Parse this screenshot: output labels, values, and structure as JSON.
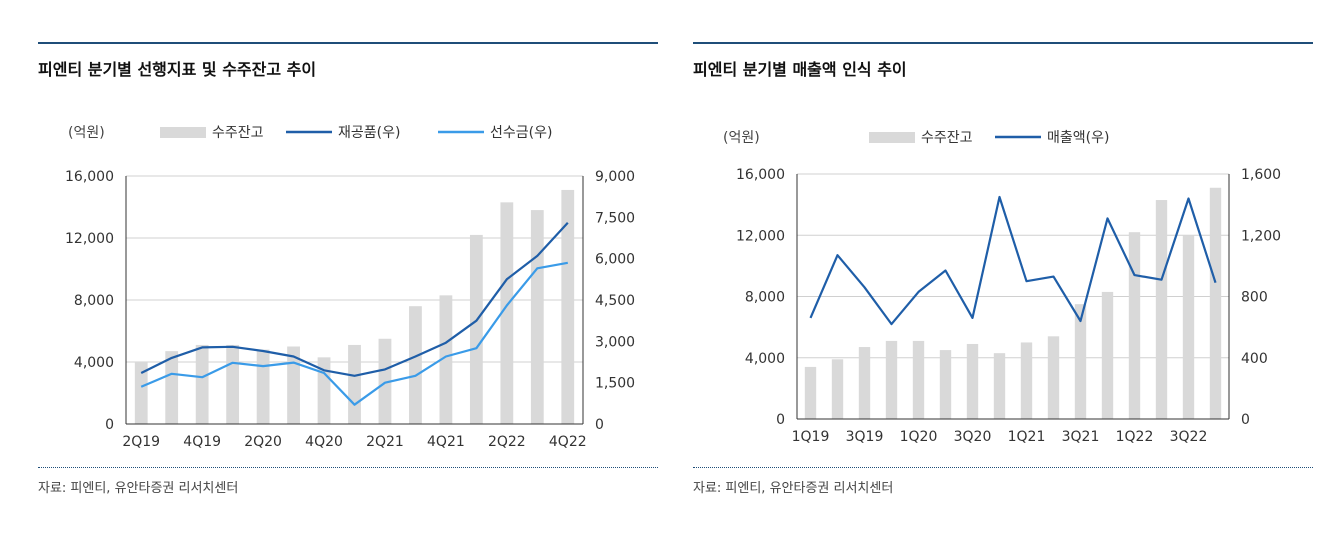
{
  "page": {
    "source_label": "자료: 피엔티, 유안타증권 리서치센터"
  },
  "colors": {
    "bar": "#d9d9d9",
    "dark_line": "#1f5ea8",
    "light_line": "#3a9be8",
    "rule": "#1f4e79",
    "axis": "#333333"
  },
  "chart_data": [
    {
      "type": "bar",
      "title": "피엔티 분기별 선행지표 및 수주잔고 추이",
      "unit_label": "(억원)",
      "categories": [
        "2Q19",
        "3Q19",
        "4Q19",
        "1Q20",
        "2Q20",
        "3Q20",
        "4Q20",
        "1Q21",
        "2Q21",
        "3Q21",
        "4Q21",
        "1Q22",
        "2Q22",
        "3Q22",
        "4Q22"
      ],
      "x_tick_labels": [
        "2Q19",
        "4Q19",
        "2Q20",
        "4Q20",
        "2Q21",
        "4Q21",
        "2Q22",
        "4Q22"
      ],
      "left_axis": {
        "min": 0,
        "max": 16000,
        "ticks": [
          "0",
          "4,000",
          "8,000",
          "12,000",
          "16,000"
        ]
      },
      "right_axis": {
        "min": 0,
        "max": 9000,
        "ticks": [
          "0",
          "1,500",
          "3,000",
          "4,500",
          "6,000",
          "7,500",
          "9,000"
        ]
      },
      "legend": [
        {
          "name": "수주잔고",
          "kind": "bar"
        },
        {
          "name": "재공품(우)",
          "kind": "line-dark"
        },
        {
          "name": "선수금(우)",
          "kind": "line-light"
        }
      ],
      "series": [
        {
          "name": "수주잔고",
          "axis": "left",
          "kind": "bar",
          "values": [
            4000,
            4700,
            5100,
            5100,
            4800,
            5000,
            4300,
            5100,
            5500,
            7600,
            8300,
            12200,
            14300,
            13800,
            15100
          ]
        },
        {
          "name": "재공품(우)",
          "axis": "right",
          "kind": "line-dark",
          "values": [
            1850,
            2400,
            2780,
            2800,
            2650,
            2450,
            1950,
            1750,
            1980,
            2450,
            2950,
            3750,
            5250,
            6100,
            7300
          ]
        },
        {
          "name": "선수금(우)",
          "axis": "right",
          "kind": "line-light",
          "values": [
            1350,
            1820,
            1700,
            2220,
            2100,
            2230,
            1850,
            700,
            1500,
            1750,
            2450,
            2750,
            4300,
            5650,
            5850
          ]
        }
      ]
    },
    {
      "type": "bar",
      "title": "피엔티 분기별 매출액 인식 추이",
      "unit_label": "(억원)",
      "categories": [
        "1Q19",
        "2Q19",
        "3Q19",
        "4Q19",
        "1Q20",
        "2Q20",
        "3Q20",
        "4Q20",
        "1Q21",
        "2Q21",
        "3Q21",
        "4Q21",
        "1Q22",
        "2Q22",
        "3Q22",
        "4Q22"
      ],
      "x_tick_labels": [
        "1Q19",
        "3Q19",
        "1Q20",
        "3Q20",
        "1Q21",
        "3Q21",
        "1Q22",
        "3Q22"
      ],
      "left_axis": {
        "min": 0,
        "max": 16000,
        "ticks": [
          "0",
          "4,000",
          "8,000",
          "12,000",
          "16,000"
        ]
      },
      "right_axis": {
        "min": 0,
        "max": 1600,
        "ticks": [
          "0",
          "400",
          "800",
          "1,200",
          "1,600"
        ]
      },
      "legend": [
        {
          "name": "수주잔고",
          "kind": "bar"
        },
        {
          "name": "매출액(우)",
          "kind": "line-dark"
        }
      ],
      "series": [
        {
          "name": "수주잔고",
          "axis": "left",
          "kind": "bar",
          "values": [
            3400,
            3900,
            4700,
            5100,
            5100,
            4500,
            4900,
            4300,
            5000,
            5400,
            7500,
            8300,
            12200,
            14300,
            12000,
            15100
          ]
        },
        {
          "name": "매출액(우)",
          "axis": "right",
          "kind": "line-dark",
          "values": [
            660,
            1070,
            860,
            620,
            830,
            970,
            660,
            1450,
            900,
            930,
            640,
            1310,
            940,
            910,
            1440,
            890
          ]
        }
      ]
    }
  ]
}
